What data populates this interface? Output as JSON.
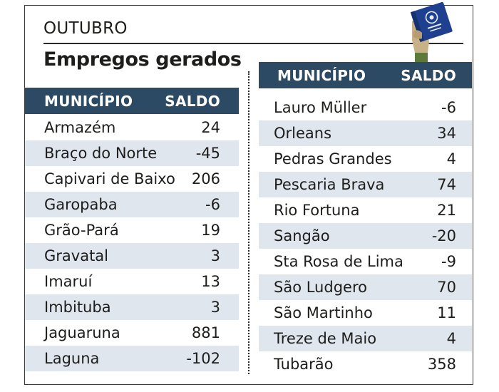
{
  "header": {
    "kicker": "OUTUBRO",
    "title": "Empregos gerados"
  },
  "icon": {
    "name": "work-card-icon",
    "colors": {
      "card": "#1f3f8f",
      "hand": "#c9b187",
      "sleeve": "#5e7a3a"
    }
  },
  "colors": {
    "header_bg": "#2c4a63",
    "row_shade": "#dfe6ee"
  },
  "left_table": {
    "col_municipio": "MUNICÍPIO",
    "col_saldo": "SALDO",
    "rows": [
      {
        "municipio": "Armazém",
        "saldo": "24"
      },
      {
        "municipio": "Braço do Norte",
        "saldo": "-45"
      },
      {
        "municipio": "Capivari de Baixo",
        "saldo": "206"
      },
      {
        "municipio": "Garopaba",
        "saldo": "-6"
      },
      {
        "municipio": "Grão-Pará",
        "saldo": "19"
      },
      {
        "municipio": "Gravatal",
        "saldo": "3"
      },
      {
        "municipio": "Imaruí",
        "saldo": "13"
      },
      {
        "municipio": "Imbituba",
        "saldo": "3"
      },
      {
        "municipio": "Jaguaruna",
        "saldo": "881"
      },
      {
        "municipio": "Laguna",
        "saldo": "-102"
      }
    ]
  },
  "right_table": {
    "col_municipio": "MUNICÍPIO",
    "col_saldo": "SALDO",
    "rows": [
      {
        "municipio": "Lauro Müller",
        "saldo": "-6"
      },
      {
        "municipio": "Orleans",
        "saldo": "34"
      },
      {
        "municipio": "Pedras Grandes",
        "saldo": "4"
      },
      {
        "municipio": "Pescaria Brava",
        "saldo": "74"
      },
      {
        "municipio": "Rio Fortuna",
        "saldo": "21"
      },
      {
        "municipio": "Sangão",
        "saldo": "-20"
      },
      {
        "municipio": "Sta Rosa de Lima",
        "saldo": "-9"
      },
      {
        "municipio": "São Ludgero",
        "saldo": "70"
      },
      {
        "municipio": "São Martinho",
        "saldo": "11"
      },
      {
        "municipio": "Treze de Maio",
        "saldo": "4"
      },
      {
        "municipio": "Tubarão",
        "saldo": "358"
      }
    ]
  }
}
